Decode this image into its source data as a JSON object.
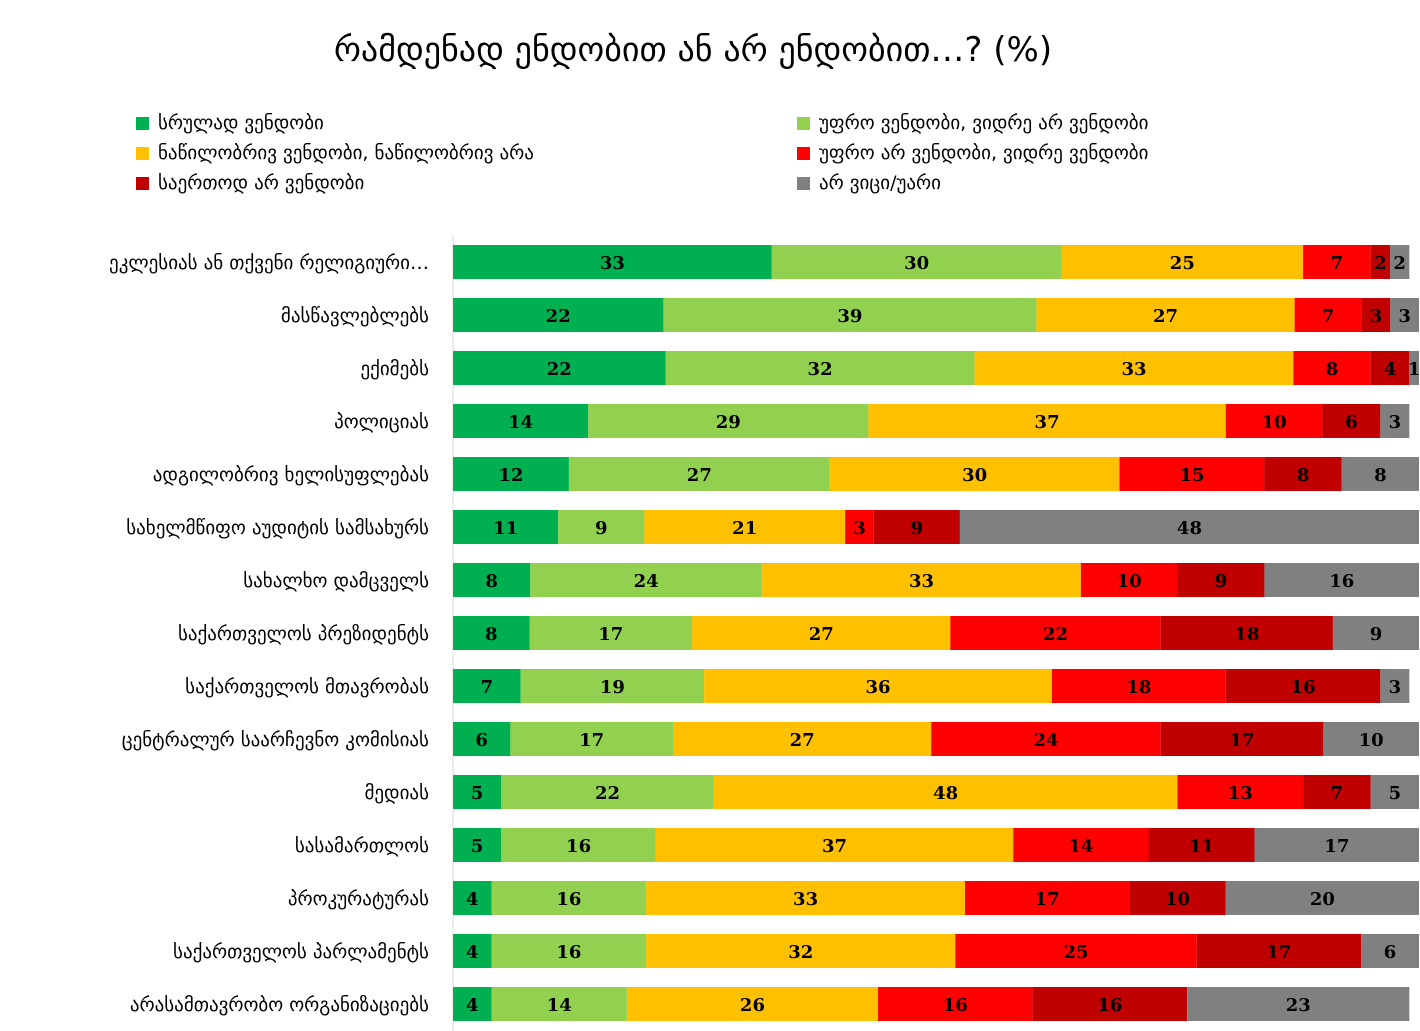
{
  "chart_data": {
    "type": "bar",
    "orientation": "horizontal",
    "stacked": true,
    "title": "რამდენად ენდობით ან არ ენდობით…? (%)",
    "legend_position": "top",
    "grid": false,
    "categories": [
      "ეკლესიას ან თქვენი რელიგიური…",
      "მასწავლებლებს",
      "ექიმებს",
      "პოლიციას",
      "ადგილობრივ ხელისუფლებას",
      "სახელმწიფო აუდიტის სამსახურს",
      "სახალხო დამცველს",
      "საქართველოს პრეზიდენტს",
      "საქართველოს მთავრობას",
      "ცენტრალურ საარჩევნო კომისიას",
      "მედიას",
      "სასამართლოს",
      "პროკურატურას",
      "საქართველოს პარლამენტს",
      "არასამთავრობო ორგანიზაციებს"
    ],
    "series": [
      {
        "name": "სრულად ვენდობი",
        "color": "#00b050",
        "values": [
          33,
          22,
          22,
          14,
          12,
          11,
          8,
          8,
          7,
          6,
          5,
          5,
          4,
          4,
          4
        ]
      },
      {
        "name": "უფრო ვენდობი, ვიდრე არ ვენდობი",
        "color": "#92d050",
        "values": [
          30,
          39,
          32,
          29,
          27,
          9,
          24,
          17,
          19,
          17,
          22,
          16,
          16,
          16,
          14
        ]
      },
      {
        "name": "ნაწილობრივ ვენდობი, ნაწილობრივ არა",
        "color": "#ffc000",
        "values": [
          25,
          27,
          33,
          37,
          30,
          21,
          33,
          27,
          36,
          27,
          48,
          37,
          33,
          32,
          26
        ]
      },
      {
        "name": "უფრო არ ვენდობი, ვიდრე ვენდობი",
        "color": "#ff0000",
        "values": [
          7,
          7,
          8,
          10,
          15,
          3,
          10,
          22,
          18,
          24,
          13,
          14,
          17,
          25,
          16
        ]
      },
      {
        "name": "საერთოდ არ ვენდობი",
        "color": "#c00000",
        "values": [
          2,
          3,
          4,
          6,
          8,
          9,
          9,
          18,
          16,
          17,
          7,
          11,
          10,
          17,
          16
        ]
      },
      {
        "name": "არ ვიცი/უარი",
        "color": "#808080",
        "values": [
          2,
          3,
          1,
          3,
          8,
          48,
          16,
          9,
          3,
          10,
          5,
          17,
          20,
          6,
          23
        ]
      }
    ]
  }
}
